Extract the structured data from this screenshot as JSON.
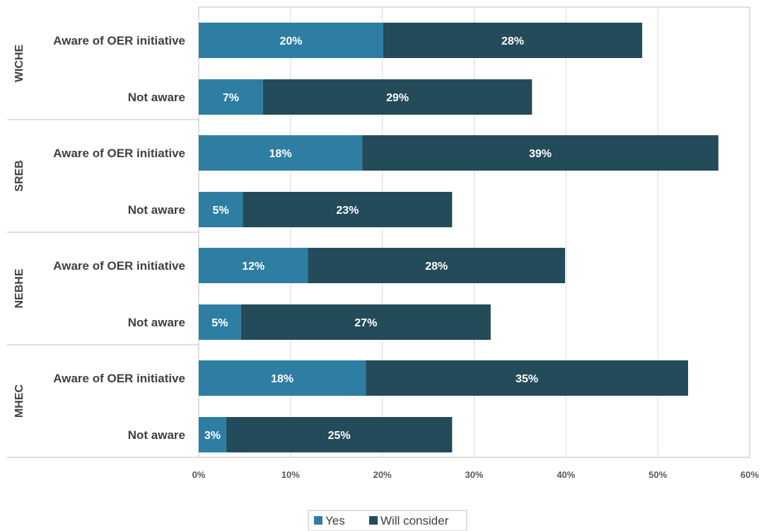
{
  "chart_data": {
    "type": "bar",
    "orientation": "horizontal",
    "stacked": true,
    "xlim": [
      0,
      60
    ],
    "x_ticks": [
      "0%",
      "10%",
      "20%",
      "30%",
      "40%",
      "50%",
      "60%"
    ],
    "grid": true,
    "legend_position": "bottom",
    "colors": {
      "Yes": "#2e7ea3",
      "Will consider": "#244b5a"
    },
    "series_names": [
      "Yes",
      "Will consider"
    ],
    "groups": [
      {
        "name": "WICHE",
        "rows": [
          {
            "label": "Aware of OER initiative",
            "values": [
              20.1,
              28.2
            ],
            "labels": [
              "20%",
              "28%"
            ]
          },
          {
            "label": "Not aware",
            "values": [
              7.0,
              29.3
            ],
            "labels": [
              "7%",
              "29%"
            ]
          }
        ]
      },
      {
        "name": "SREB",
        "rows": [
          {
            "label": "Aware of OER initiative",
            "values": [
              17.8,
              38.8
            ],
            "labels": [
              "18%",
              "39%"
            ]
          },
          {
            "label": "Not aware",
            "values": [
              4.8,
              22.8
            ],
            "labels": [
              "5%",
              "23%"
            ]
          }
        ]
      },
      {
        "name": "NEBHE",
        "rows": [
          {
            "label": "Aware of OER initiative",
            "values": [
              11.9,
              28.0
            ],
            "labels": [
              "12%",
              "28%"
            ]
          },
          {
            "label": "Not aware",
            "values": [
              4.6,
              27.2
            ],
            "labels": [
              "5%",
              "27%"
            ]
          }
        ]
      },
      {
        "name": "MHEC",
        "rows": [
          {
            "label": "Aware of OER initiative",
            "values": [
              18.2,
              35.1
            ],
            "labels": [
              "18%",
              "35%"
            ]
          },
          {
            "label": "Not aware",
            "values": [
              3.0,
              24.6
            ],
            "labels": [
              "3%",
              "25%"
            ]
          }
        ]
      }
    ]
  }
}
